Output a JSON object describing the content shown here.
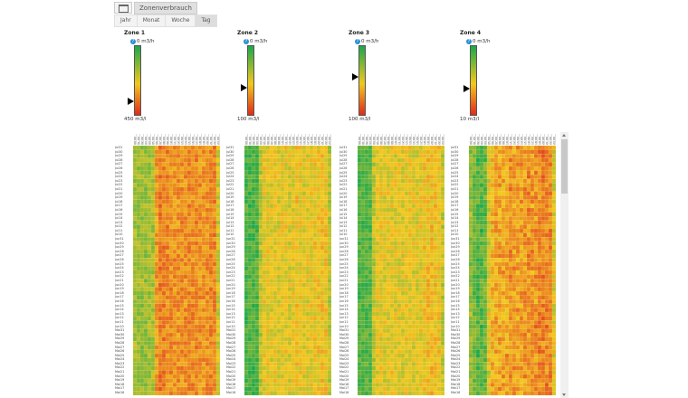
{
  "header": {
    "title": "Zonenverbrauch",
    "icon": "calendar-icon"
  },
  "tabs": [
    {
      "label": "Jahr"
    },
    {
      "label": "Monat"
    },
    {
      "label": "Woche"
    },
    {
      "label": "Tag",
      "active": true
    }
  ],
  "zones": [
    {
      "title": "Zone 1",
      "top": "0 m3/h",
      "bottom": "450 m3/l",
      "level": 0.8,
      "profile": [
        0.35,
        0.33,
        0.32,
        0.32,
        0.34,
        0.36,
        0.7,
        0.78,
        0.76,
        0.74,
        0.72,
        0.72,
        0.7,
        0.72,
        0.72,
        0.74,
        0.73,
        0.74,
        0.72,
        0.7,
        0.72,
        0.74,
        0.74,
        0.45
      ]
    },
    {
      "title": "Zone 2",
      "top": "0 m3/h",
      "bottom": "100 m3/l",
      "level": 0.6,
      "profile": [
        0.12,
        0.12,
        0.12,
        0.14,
        0.4,
        0.52,
        0.52,
        0.5,
        0.52,
        0.5,
        0.52,
        0.52,
        0.5,
        0.52,
        0.55,
        0.52,
        0.5,
        0.5,
        0.52,
        0.54,
        0.55,
        0.56,
        0.55,
        0.4
      ]
    },
    {
      "title": "Zone 3",
      "top": "0 m3/h",
      "bottom": "100 m3/l",
      "level": 0.45,
      "profile": [
        0.14,
        0.14,
        0.15,
        0.16,
        0.42,
        0.5,
        0.52,
        0.5,
        0.5,
        0.52,
        0.5,
        0.5,
        0.5,
        0.52,
        0.52,
        0.5,
        0.5,
        0.52,
        0.55,
        0.58,
        0.58,
        0.56,
        0.55,
        0.42
      ]
    },
    {
      "title": "Zone 4",
      "top": "0 m3/h",
      "bottom": "10 m3/l",
      "level": 0.62,
      "profile": [
        0.3,
        0.22,
        0.15,
        0.15,
        0.2,
        0.5,
        0.62,
        0.66,
        0.65,
        0.64,
        0.66,
        0.7,
        0.68,
        0.66,
        0.68,
        0.7,
        0.72,
        0.7,
        0.72,
        0.74,
        0.76,
        0.74,
        0.72,
        0.5
      ]
    }
  ],
  "hours": [
    "00:00",
    "01:00",
    "02:00",
    "03:00",
    "04:00",
    "05:00",
    "06:00",
    "07:00",
    "08:00",
    "09:00",
    "10:00",
    "11:00",
    "12:00",
    "13:00",
    "14:00",
    "15:00",
    "16:00",
    "17:00",
    "18:00",
    "19:00",
    "20:00",
    "21:00",
    "22:00",
    "23:00"
  ],
  "colors": {
    "low": "#1aa84a",
    "mid": "#f3c81c",
    "high": "#e02a1a"
  }
}
